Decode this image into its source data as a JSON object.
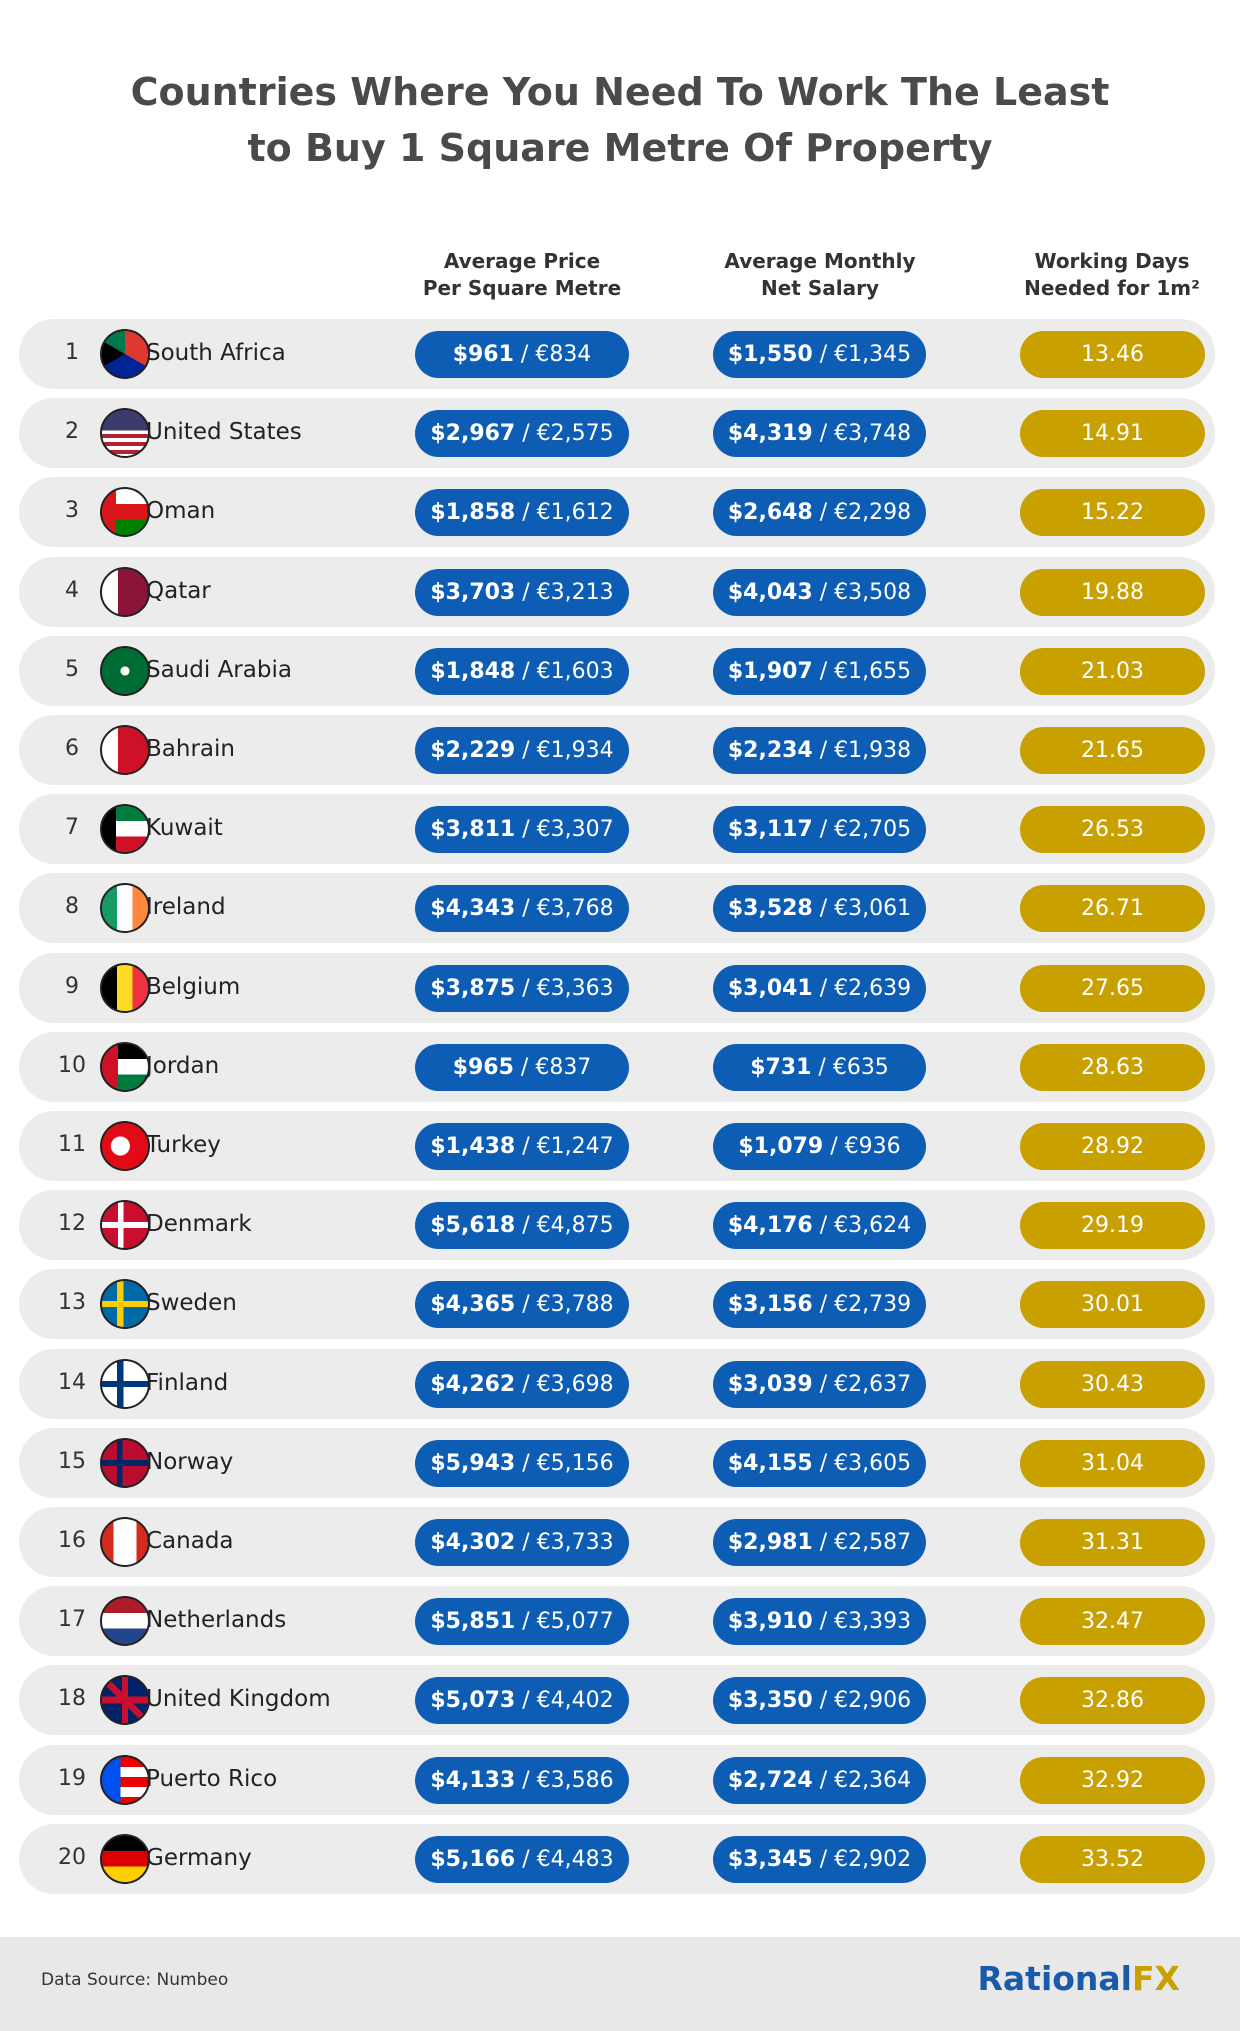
{
  "header": {
    "title_lines": [
      "Countries Where You Need To Work The Least",
      "to Buy 1 Square Metre Of Property"
    ]
  },
  "table": {
    "columns": [
      [
        "Average Price",
        "Per Square Metre"
      ],
      [
        "Average Monthly",
        "Net Salary"
      ],
      [
        "Working Days",
        "Needed for 1m²"
      ]
    ],
    "rows": [
      {
        "rank": 1,
        "country": "South Africa",
        "price": "$961 / €834",
        "salary": "$1,550 / €1,345",
        "days": 13.46
      },
      {
        "rank": 2,
        "country": "United States",
        "price": "$2,967 / €2,575",
        "salary": "$4,319 / €3,748",
        "days": 14.91
      },
      {
        "rank": 3,
        "country": "Oman",
        "price": "$1,858 / €1,612",
        "salary": "$2,648 / €2,298",
        "days": 15.22
      },
      {
        "rank": 4,
        "country": "Qatar",
        "price": "$3,703 / €3,213",
        "salary": "$4,043 / €3,508",
        "days": 19.88
      },
      {
        "rank": 5,
        "country": "Saudi Arabia",
        "price": "$1,848 / €1,603",
        "salary": "$1,907 / €1,655",
        "days": 21.03
      },
      {
        "rank": 6,
        "country": "Bahrain",
        "price": "$2,229 / €1,934",
        "salary": "$2,234 / €1,938",
        "days": 21.65
      },
      {
        "rank": 7,
        "country": "Kuwait",
        "price": "$3,811 / €3,307",
        "salary": "$3,117 / €2,705",
        "days": 26.53
      },
      {
        "rank": 8,
        "country": "Ireland",
        "price": "$4,343 / €3,768",
        "salary": "$3,528 / €3,061",
        "days": 26.71
      },
      {
        "rank": 9,
        "country": "Belgium",
        "price": "$3,875 / €3,363",
        "salary": "$3,041 / €2,639",
        "days": 27.65
      },
      {
        "rank": 10,
        "country": "Jordan",
        "price": "$965 / €837",
        "salary": "$731 / €635",
        "days": 28.63
      },
      {
        "rank": 11,
        "country": "Turkey",
        "price": "$1,438 / €1,247",
        "salary": "$1,079 / €936",
        "days": 28.92
      },
      {
        "rank": 12,
        "country": "Denmark",
        "price": "$5,618 / €4,875",
        "salary": "$4,176 / €3,624",
        "days": 29.19
      },
      {
        "rank": 13,
        "country": "Sweden",
        "price": "$4,365 / €3,788",
        "salary": "$3,156 / €2,739",
        "days": 30.01
      },
      {
        "rank": 14,
        "country": "Finland",
        "price": "$4,262 / €3,698",
        "salary": "$3,039 / €2,637",
        "days": 30.43
      },
      {
        "rank": 15,
        "country": "Norway",
        "price": "$5,943 / €5,156",
        "salary": "$4,155 / €3,605",
        "days": 31.04
      },
      {
        "rank": 16,
        "country": "Canada",
        "price": "$4,302 / €3,733",
        "salary": "$2,981 / €2,587",
        "days": 31.31
      },
      {
        "rank": 17,
        "country": "Netherlands",
        "price": "$5,851 / €5,077",
        "salary": "$3,910 / €3,393",
        "days": 32.47
      },
      {
        "rank": 18,
        "country": "United Kingdom",
        "price": "$5,073 / €4,402",
        "salary": "$3,350 / €2,906",
        "days": 32.86
      },
      {
        "rank": 19,
        "country": "Puerto Rico",
        "price": "$4,133 / €3,586",
        "salary": "$2,724 / €2,364",
        "days": 32.92
      },
      {
        "rank": 20,
        "country": "Germany",
        "price": "$5,166 / €4,483",
        "salary": "$3,345 / €2,902",
        "days": 33.52
      }
    ]
  },
  "footer": {
    "source": "Data Source: Numbeo",
    "logo": [
      "Rational",
      "FX"
    ]
  }
}
